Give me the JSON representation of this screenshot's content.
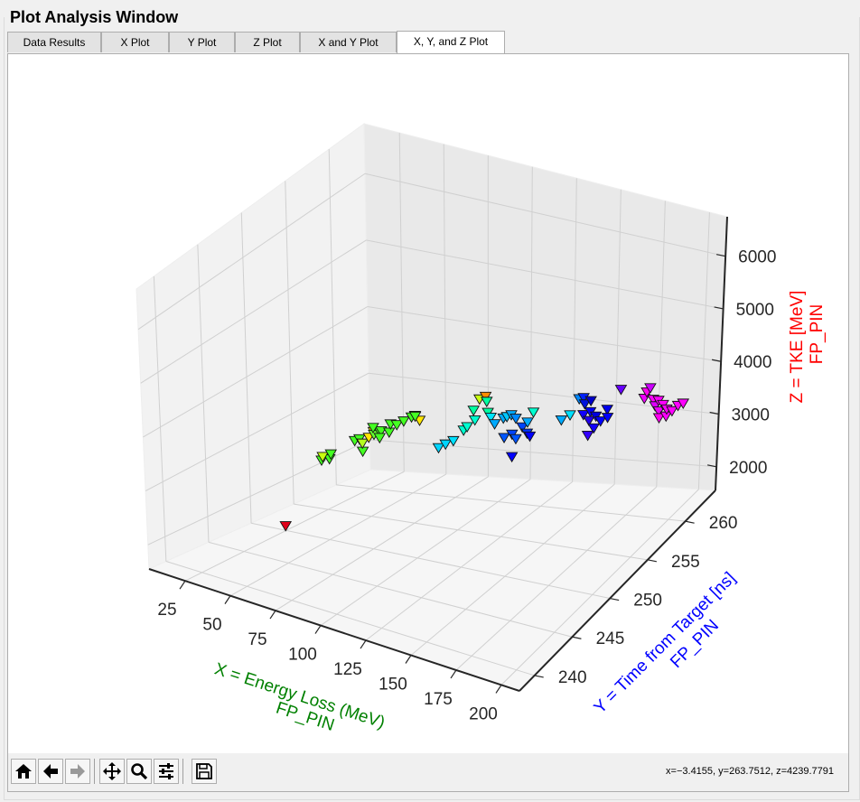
{
  "window": {
    "title": "Plot Analysis Window"
  },
  "tabs": [
    {
      "label": "Data Results"
    },
    {
      "label": "X Plot"
    },
    {
      "label": "Y Plot"
    },
    {
      "label": "Z Plot"
    },
    {
      "label": "X and Y Plot"
    },
    {
      "label": "X, Y, and Z Plot",
      "active": true
    }
  ],
  "toolbar": {
    "buttons": [
      "home-icon",
      "back-arrow-icon",
      "forward-arrow-icon",
      "pan-icon",
      "zoom-icon",
      "configure-subplots-icon",
      "save-icon"
    ],
    "coords": "x=−3.4155, y=263.7512, z=4239.7791"
  },
  "chart_data": {
    "type": "scatter3d",
    "marker": "triangle-down",
    "xlabel": [
      "X = Energy Loss (MeV)",
      "FP_PIN"
    ],
    "ylabel": [
      "Y = Time from Target [ns]",
      "FP_PIN"
    ],
    "zlabel": [
      "Z = TKE [MeV]",
      "FP_PIN"
    ],
    "xlabel_color": "#008000",
    "ylabel_color": "#0000ff",
    "zlabel_color": "#ff0000",
    "xticks": [
      25,
      50,
      75,
      100,
      125,
      150,
      175,
      200
    ],
    "yticks": [
      240,
      245,
      250,
      255,
      260
    ],
    "zticks": [
      2000,
      3000,
      4000,
      5000,
      6000
    ],
    "xlim": [
      5,
      210
    ],
    "ylim": [
      238,
      264
    ],
    "zlim": [
      1550,
      6750
    ],
    "grid": true,
    "points": [
      {
        "x": 60,
        "y": 242.5,
        "z": 2430,
        "color": "#e0001a"
      },
      {
        "x": 52,
        "y": 248.5,
        "z": 3000,
        "color": "#44ff22"
      },
      {
        "x": 54,
        "y": 249,
        "z": 3010,
        "color": "#44ff22"
      },
      {
        "x": 55,
        "y": 248,
        "z": 3110,
        "color": "#c8ff10"
      },
      {
        "x": 51,
        "y": 249.8,
        "z": 3010,
        "color": "#44ff22"
      },
      {
        "x": 63,
        "y": 250.1,
        "z": 3300,
        "color": "#44ff22"
      },
      {
        "x": 68,
        "y": 249.6,
        "z": 3400,
        "color": "#44ff22"
      },
      {
        "x": 76,
        "y": 248.3,
        "z": 3360,
        "color": "#44ff22"
      },
      {
        "x": 73,
        "y": 248.9,
        "z": 3420,
        "color": "#b5ff20"
      },
      {
        "x": 79,
        "y": 248.4,
        "z": 3590,
        "color": "#ffe600"
      },
      {
        "x": 75,
        "y": 249.8,
        "z": 3560,
        "color": "#fff000"
      },
      {
        "x": 80,
        "y": 248.8,
        "z": 3620,
        "color": "#66ff30"
      },
      {
        "x": 82,
        "y": 249,
        "z": 3680,
        "color": "#44ff22"
      },
      {
        "x": 84,
        "y": 248.8,
        "z": 3710,
        "color": "#44ff22"
      },
      {
        "x": 86,
        "y": 248.2,
        "z": 3660,
        "color": "#44ff22"
      },
      {
        "x": 88,
        "y": 248.9,
        "z": 3720,
        "color": "#44ff22"
      },
      {
        "x": 81,
        "y": 248.5,
        "z": 3750,
        "color": "#44ff22"
      },
      {
        "x": 85,
        "y": 249.7,
        "z": 3770,
        "color": "#44ff22"
      },
      {
        "x": 89,
        "y": 249.6,
        "z": 3800,
        "color": "#44ff22"
      },
      {
        "x": 90,
        "y": 250.2,
        "z": 3830,
        "color": "#44ff22"
      },
      {
        "x": 92,
        "y": 250.7,
        "z": 3880,
        "color": "#44ff22"
      },
      {
        "x": 96,
        "y": 250.8,
        "z": 3860,
        "color": "#ffe600"
      },
      {
        "x": 93,
        "y": 250.9,
        "z": 3900,
        "color": "#c8ff10"
      },
      {
        "x": 95,
        "y": 250.5,
        "z": 3930,
        "color": "#44ff22"
      },
      {
        "x": 112,
        "y": 249.6,
        "z": 3660,
        "color": "#00d5ff"
      },
      {
        "x": 114,
        "y": 250,
        "z": 3710,
        "color": "#00d5ff"
      },
      {
        "x": 116,
        "y": 250.5,
        "z": 3750,
        "color": "#00e0ff"
      },
      {
        "x": 118,
        "y": 251.3,
        "z": 3880,
        "color": "#00ffd0"
      },
      {
        "x": 120,
        "y": 251.3,
        "z": 3950,
        "color": "#00ffd0"
      },
      {
        "x": 122,
        "y": 251.8,
        "z": 4040,
        "color": "#00ffd0"
      },
      {
        "x": 118,
        "y": 252.5,
        "z": 4110,
        "color": "#00ffa0"
      },
      {
        "x": 120,
        "y": 252.8,
        "z": 4280,
        "color": "#c8ff10"
      },
      {
        "x": 122,
        "y": 253.1,
        "z": 4320,
        "color": "#ff8c00"
      },
      {
        "x": 124,
        "y": 252.8,
        "z": 4280,
        "color": "#00ffa0"
      },
      {
        "x": 126,
        "y": 252.5,
        "z": 4150,
        "color": "#00ffa0"
      },
      {
        "x": 128,
        "y": 252.4,
        "z": 4100,
        "color": "#00e5ff"
      },
      {
        "x": 132,
        "y": 252,
        "z": 4060,
        "color": "#00aaff"
      },
      {
        "x": 135,
        "y": 252.4,
        "z": 4150,
        "color": "#00aaff"
      },
      {
        "x": 137,
        "y": 252.4,
        "z": 4190,
        "color": "#00c8ff"
      },
      {
        "x": 139,
        "y": 252.5,
        "z": 4230,
        "color": "#00aaff"
      },
      {
        "x": 141,
        "y": 252.6,
        "z": 4190,
        "color": "#0088ff"
      },
      {
        "x": 140,
        "y": 251.4,
        "z": 3960,
        "color": "#0055ff"
      },
      {
        "x": 143,
        "y": 251.7,
        "z": 4020,
        "color": "#0044ff"
      },
      {
        "x": 146,
        "y": 251.5,
        "z": 3990,
        "color": "#0055ff"
      },
      {
        "x": 145,
        "y": 252.5,
        "z": 4100,
        "color": "#0044ff"
      },
      {
        "x": 147,
        "y": 252.7,
        "z": 4180,
        "color": "#00aaff"
      },
      {
        "x": 148,
        "y": 253.2,
        "z": 4310,
        "color": "#00ffd0"
      },
      {
        "x": 149,
        "y": 252.2,
        "z": 4060,
        "color": "#0033ff"
      },
      {
        "x": 151,
        "y": 252.1,
        "z": 4040,
        "color": "#0000ff"
      },
      {
        "x": 147,
        "y": 250.8,
        "z": 3770,
        "color": "#0000ff"
      },
      {
        "x": 162,
        "y": 253.5,
        "z": 4300,
        "color": "#00aaff"
      },
      {
        "x": 165,
        "y": 253.9,
        "z": 4380,
        "color": "#00e0ff"
      },
      {
        "x": 166,
        "y": 254.8,
        "z": 4580,
        "color": "#0088ff"
      },
      {
        "x": 168,
        "y": 254.9,
        "z": 4610,
        "color": "#0022ff"
      },
      {
        "x": 170,
        "y": 254.6,
        "z": 4550,
        "color": "#0011dd"
      },
      {
        "x": 172,
        "y": 254.9,
        "z": 4600,
        "color": "#0000cc"
      },
      {
        "x": 171,
        "y": 254.2,
        "z": 4420,
        "color": "#1100ff"
      },
      {
        "x": 174,
        "y": 254.4,
        "z": 4480,
        "color": "#0000ff"
      },
      {
        "x": 175,
        "y": 254,
        "z": 4380,
        "color": "#2200ee"
      },
      {
        "x": 177,
        "y": 254.4,
        "z": 4440,
        "color": "#0000dd"
      },
      {
        "x": 179,
        "y": 253.7,
        "z": 4320,
        "color": "#1100ff"
      },
      {
        "x": 180,
        "y": 254.3,
        "z": 4400,
        "color": "#0000ff"
      },
      {
        "x": 181,
        "y": 254.9,
        "z": 4550,
        "color": "#0000ee"
      },
      {
        "x": 178,
        "y": 253.2,
        "z": 4230,
        "color": "#3300ff"
      },
      {
        "x": 183,
        "y": 254.5,
        "z": 4470,
        "color": "#0000ff"
      },
      {
        "x": 186,
        "y": 255.5,
        "z": 4860,
        "color": "#6600ff"
      },
      {
        "x": 196,
        "y": 256.1,
        "z": 4780,
        "color": "#ee00ff"
      },
      {
        "x": 198,
        "y": 256,
        "z": 4900,
        "color": "#ff00ee"
      },
      {
        "x": 199,
        "y": 256.2,
        "z": 4960,
        "color": "#cc00ff"
      },
      {
        "x": 200,
        "y": 256.3,
        "z": 4790,
        "color": "#ff00ff"
      },
      {
        "x": 201,
        "y": 256.3,
        "z": 4700,
        "color": "#dd00ff"
      },
      {
        "x": 202,
        "y": 256.5,
        "z": 4780,
        "color": "#ff00ff"
      },
      {
        "x": 203,
        "y": 256.3,
        "z": 4640,
        "color": "#ee00ff"
      },
      {
        "x": 204,
        "y": 256.6,
        "z": 4730,
        "color": "#ff00ff"
      },
      {
        "x": 204,
        "y": 256.1,
        "z": 4560,
        "color": "#ff00ee"
      },
      {
        "x": 206,
        "y": 256.5,
        "z": 4580,
        "color": "#ff00ff"
      },
      {
        "x": 205,
        "y": 256.8,
        "z": 4660,
        "color": "#ff00ff"
      },
      {
        "x": 207,
        "y": 257,
        "z": 4640,
        "color": "#ff00ff"
      },
      {
        "x": 208,
        "y": 257.5,
        "z": 4700,
        "color": "#ff00ff"
      },
      {
        "x": 209,
        "y": 257.9,
        "z": 4720,
        "color": "#ff00ff"
      }
    ]
  }
}
